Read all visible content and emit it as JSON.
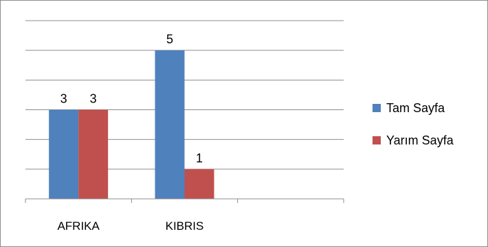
{
  "chart_data": {
    "type": "bar",
    "categories": [
      "AFRIKA",
      "KIBRIS",
      ""
    ],
    "series": [
      {
        "name": "Tam Sayfa",
        "values": [
          3,
          5,
          null
        ],
        "color": "#4F81BD"
      },
      {
        "name": "Yarım Sayfa",
        "values": [
          3,
          1,
          null
        ],
        "color": "#C0504D"
      }
    ],
    "title": "",
    "xlabel": "",
    "ylabel": "",
    "ylim": [
      0,
      6
    ],
    "grid": true,
    "legend": "right",
    "data_labels": true
  }
}
